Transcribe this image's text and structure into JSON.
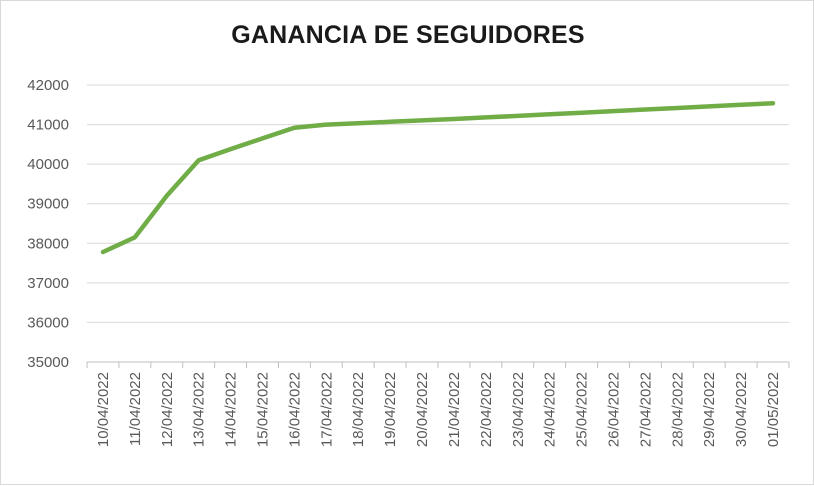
{
  "chart_data": {
    "type": "line",
    "title": "GANANCIA DE SEGUIDORES",
    "xlabel": "",
    "ylabel": "",
    "categories": [
      "10/04/2022",
      "11/04/2022",
      "12/04/2022",
      "13/04/2022",
      "14/04/2022",
      "15/04/2022",
      "16/04/2022",
      "17/04/2022",
      "18/04/2022",
      "19/04/2022",
      "20/04/2022",
      "21/04/2022",
      "22/04/2022",
      "23/04/2022",
      "24/04/2022",
      "25/04/2022",
      "26/04/2022",
      "27/04/2022",
      "28/04/2022",
      "29/04/2022",
      "30/04/2022",
      "01/05/2022"
    ],
    "series": [
      {
        "values": [
          37780,
          38150,
          39200,
          40100,
          40380,
          40650,
          40920,
          41000,
          41035,
          41070,
          41105,
          41140,
          41180,
          41220,
          41260,
          41300,
          41340,
          41380,
          41420,
          41460,
          41500,
          41540
        ],
        "color": "#70ad47"
      }
    ],
    "ylim": [
      35000,
      42000
    ],
    "yticks": [
      35000,
      36000,
      37000,
      38000,
      39000,
      40000,
      41000,
      42000
    ],
    "grid": true,
    "legend": "none"
  }
}
